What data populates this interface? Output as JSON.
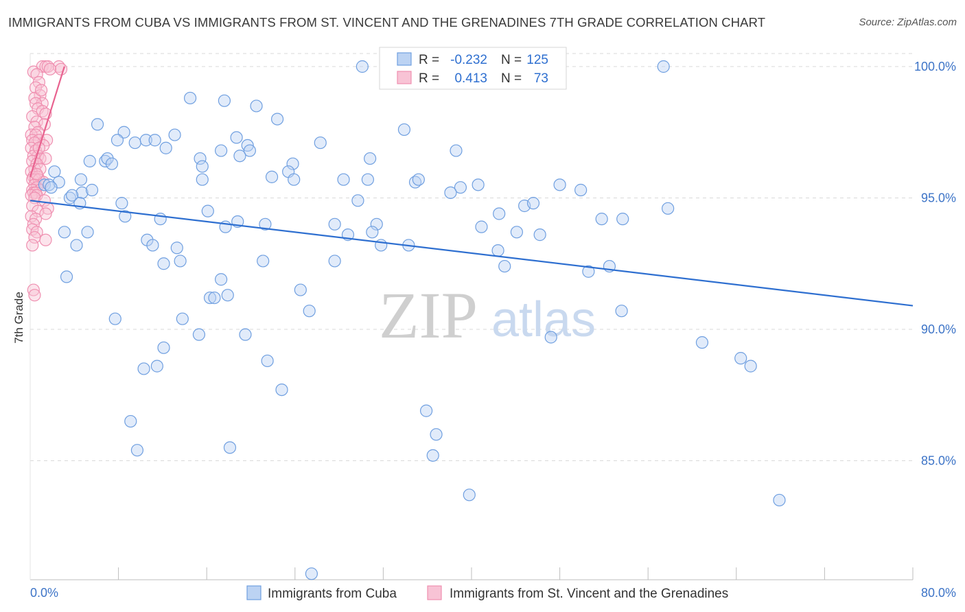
{
  "title": "IMMIGRANTS FROM CUBA VS IMMIGRANTS FROM ST. VINCENT AND THE GRENADINES 7TH GRADE CORRELATION CHART",
  "source": "Source: ZipAtlas.com",
  "colors": {
    "blue": "#6f9fe0",
    "blue_line": "#2e6fd0",
    "pink": "#ef8fb0",
    "pink_line": "#e8628f",
    "tick": "#3d74c7",
    "grid": "#d9d9d9"
  },
  "chart_data": {
    "type": "scatter",
    "title": "IMMIGRANTS FROM CUBA VS IMMIGRANTS FROM ST. VINCENT AND THE GRENADINES 7TH GRADE CORRELATION CHART",
    "xlabel": "",
    "ylabel": "7th Grade",
    "xlim": [
      0,
      80
    ],
    "ylim": [
      80,
      100.5
    ],
    "x_tick_labels": [
      "0.0%",
      "80.0%"
    ],
    "y_ticks": [
      85,
      90,
      95,
      100
    ],
    "y_tick_labels": [
      "85.0%",
      "90.0%",
      "95.0%",
      "100.0%"
    ],
    "grid": true,
    "legend_box": {
      "rows": [
        {
          "r_label": "R =",
          "r_value": "-0.232",
          "n_label": "N =",
          "n_value": "125"
        },
        {
          "r_label": "R =",
          "r_value": "0.413",
          "n_label": "N =",
          "n_value": "73"
        }
      ]
    },
    "series": [
      {
        "name": "Immigrants from Cuba",
        "color": "#6f9fe0",
        "trend": {
          "x0": 0,
          "y0": 94.9,
          "x1": 80,
          "y1": 90.9
        },
        "points": [
          [
            30.1,
            100.0
          ],
          [
            57.4,
            100.0
          ],
          [
            14.5,
            98.8
          ],
          [
            17.6,
            98.7
          ],
          [
            20.5,
            98.5
          ],
          [
            22.4,
            98.0
          ],
          [
            6.1,
            97.8
          ],
          [
            8.5,
            97.5
          ],
          [
            13.1,
            97.4
          ],
          [
            33.9,
            97.6
          ],
          [
            7.9,
            97.2
          ],
          [
            9.5,
            97.1
          ],
          [
            10.5,
            97.2
          ],
          [
            11.3,
            97.2
          ],
          [
            12.3,
            96.9
          ],
          [
            18.7,
            97.3
          ],
          [
            19.7,
            97.0
          ],
          [
            19.9,
            96.8
          ],
          [
            26.3,
            97.1
          ],
          [
            17.3,
            96.8
          ],
          [
            38.6,
            96.8
          ],
          [
            5.4,
            96.4
          ],
          [
            6.8,
            96.4
          ],
          [
            7.0,
            96.5
          ],
          [
            7.4,
            96.3
          ],
          [
            15.4,
            96.5
          ],
          [
            15.6,
            96.2
          ],
          [
            19.0,
            96.6
          ],
          [
            23.8,
            96.3
          ],
          [
            30.8,
            96.5
          ],
          [
            23.4,
            96.0
          ],
          [
            4.6,
            95.7
          ],
          [
            2.2,
            96.0
          ],
          [
            2.6,
            95.6
          ],
          [
            1.3,
            95.5
          ],
          [
            1.7,
            95.5
          ],
          [
            1.9,
            95.4
          ],
          [
            4.7,
            95.2
          ],
          [
            5.6,
            95.3
          ],
          [
            15.6,
            95.7
          ],
          [
            21.9,
            95.8
          ],
          [
            23.9,
            95.7
          ],
          [
            28.4,
            95.7
          ],
          [
            30.6,
            95.7
          ],
          [
            34.9,
            95.6
          ],
          [
            35.2,
            95.7
          ],
          [
            39.0,
            95.4
          ],
          [
            40.6,
            95.5
          ],
          [
            48.0,
            95.5
          ],
          [
            49.9,
            95.3
          ],
          [
            38.1,
            95.2
          ],
          [
            3.6,
            95.0
          ],
          [
            3.8,
            95.1
          ],
          [
            4.5,
            94.8
          ],
          [
            8.3,
            94.8
          ],
          [
            29.7,
            94.9
          ],
          [
            11.8,
            94.2
          ],
          [
            16.1,
            94.5
          ],
          [
            8.6,
            94.3
          ],
          [
            31.4,
            94.0
          ],
          [
            18.8,
            94.1
          ],
          [
            27.6,
            94.0
          ],
          [
            42.5,
            94.4
          ],
          [
            44.8,
            94.7
          ],
          [
            45.6,
            94.8
          ],
          [
            51.8,
            94.2
          ],
          [
            53.7,
            94.2
          ],
          [
            57.8,
            94.6
          ],
          [
            3.1,
            93.7
          ],
          [
            5.2,
            93.7
          ],
          [
            10.6,
            93.4
          ],
          [
            17.7,
            93.9
          ],
          [
            28.8,
            93.6
          ],
          [
            31.0,
            93.7
          ],
          [
            40.9,
            93.9
          ],
          [
            44.1,
            93.7
          ],
          [
            46.2,
            93.6
          ],
          [
            4.2,
            93.2
          ],
          [
            11.1,
            93.2
          ],
          [
            13.3,
            93.1
          ],
          [
            21.3,
            94.0
          ],
          [
            31.8,
            93.2
          ],
          [
            34.3,
            93.2
          ],
          [
            42.4,
            93.0
          ],
          [
            12.1,
            92.5
          ],
          [
            13.6,
            92.6
          ],
          [
            21.1,
            92.6
          ],
          [
            27.6,
            92.6
          ],
          [
            43.0,
            92.4
          ],
          [
            50.6,
            92.2
          ],
          [
            52.5,
            92.4
          ],
          [
            3.3,
            92.0
          ],
          [
            17.3,
            91.9
          ],
          [
            17.9,
            91.3
          ],
          [
            16.3,
            91.2
          ],
          [
            16.7,
            91.2
          ],
          [
            24.5,
            91.5
          ],
          [
            25.3,
            90.7
          ],
          [
            7.7,
            90.4
          ],
          [
            13.8,
            90.4
          ],
          [
            53.6,
            90.7
          ],
          [
            15.3,
            89.8
          ],
          [
            19.5,
            89.8
          ],
          [
            47.2,
            89.7
          ],
          [
            12.1,
            89.3
          ],
          [
            60.9,
            89.5
          ],
          [
            64.4,
            88.9
          ],
          [
            65.3,
            88.6
          ],
          [
            10.3,
            88.5
          ],
          [
            11.5,
            88.6
          ],
          [
            21.5,
            88.8
          ],
          [
            22.8,
            87.7
          ],
          [
            35.9,
            86.9
          ],
          [
            9.1,
            86.5
          ],
          [
            36.8,
            86.0
          ],
          [
            9.7,
            85.4
          ],
          [
            18.1,
            85.5
          ],
          [
            36.5,
            85.2
          ],
          [
            39.8,
            83.7
          ],
          [
            67.9,
            83.5
          ],
          [
            25.5,
            80.7
          ]
        ]
      },
      {
        "name": "Immigrants from St. Vincent and the Grenadines",
        "color": "#ef8fb0",
        "trend": {
          "x0": 0,
          "y0": 95.8,
          "x1": 3.1,
          "y1": 100.0
        },
        "points": [
          [
            1.1,
            100.0
          ],
          [
            1.4,
            100.0
          ],
          [
            1.6,
            100.0
          ],
          [
            2.6,
            100.0
          ],
          [
            2.8,
            99.9
          ],
          [
            1.8,
            99.9
          ],
          [
            0.3,
            99.8
          ],
          [
            0.6,
            99.7
          ],
          [
            0.8,
            99.4
          ],
          [
            0.5,
            99.2
          ],
          [
            0.9,
            98.9
          ],
          [
            0.4,
            98.8
          ],
          [
            1.1,
            98.6
          ],
          [
            0.5,
            98.6
          ],
          [
            0.7,
            98.4
          ],
          [
            1.1,
            98.3
          ],
          [
            1.4,
            98.2
          ],
          [
            0.2,
            98.1
          ],
          [
            0.6,
            97.9
          ],
          [
            1.3,
            97.8
          ],
          [
            0.4,
            97.7
          ],
          [
            0.7,
            97.5
          ],
          [
            0.1,
            97.4
          ],
          [
            0.5,
            97.4
          ],
          [
            0.2,
            97.2
          ],
          [
            0.8,
            97.2
          ],
          [
            1.5,
            97.2
          ],
          [
            0.4,
            97.1
          ],
          [
            1.2,
            97.0
          ],
          [
            0.1,
            96.9
          ],
          [
            0.5,
            96.8
          ],
          [
            0.7,
            96.6
          ],
          [
            0.3,
            96.6
          ],
          [
            0.9,
            96.5
          ],
          [
            1.4,
            96.5
          ],
          [
            0.2,
            96.4
          ],
          [
            0.6,
            96.3
          ],
          [
            0.4,
            96.1
          ],
          [
            0.9,
            96.1
          ],
          [
            0.1,
            96.0
          ],
          [
            0.3,
            95.8
          ],
          [
            0.7,
            95.8
          ],
          [
            0.2,
            95.7
          ],
          [
            0.5,
            95.7
          ],
          [
            0.8,
            95.7
          ],
          [
            1.2,
            95.6
          ],
          [
            0.4,
            95.5
          ],
          [
            0.6,
            95.4
          ],
          [
            0.2,
            95.3
          ],
          [
            0.9,
            95.3
          ],
          [
            0.3,
            95.2
          ],
          [
            0.5,
            95.2
          ],
          [
            0.1,
            95.1
          ],
          [
            0.6,
            95.1
          ],
          [
            0.4,
            95.0
          ],
          [
            1.3,
            94.9
          ],
          [
            0.2,
            94.7
          ],
          [
            1.6,
            94.6
          ],
          [
            0.7,
            94.5
          ],
          [
            1.4,
            94.4
          ],
          [
            0.1,
            94.3
          ],
          [
            0.5,
            94.2
          ],
          [
            0.3,
            94.0
          ],
          [
            0.2,
            93.8
          ],
          [
            0.6,
            93.7
          ],
          [
            0.4,
            93.5
          ],
          [
            1.4,
            93.4
          ],
          [
            0.2,
            93.2
          ],
          [
            0.3,
            91.5
          ],
          [
            0.4,
            91.3
          ],
          [
            0.6,
            95.9
          ],
          [
            0.8,
            96.9
          ],
          [
            1.0,
            99.1
          ]
        ]
      }
    ]
  },
  "legend": {
    "items": [
      {
        "label": "Immigrants from Cuba"
      },
      {
        "label": "Immigrants from St. Vincent and the Grenadines"
      }
    ]
  },
  "watermark": {
    "zip": "ZIP",
    "atlas": "atlas"
  }
}
